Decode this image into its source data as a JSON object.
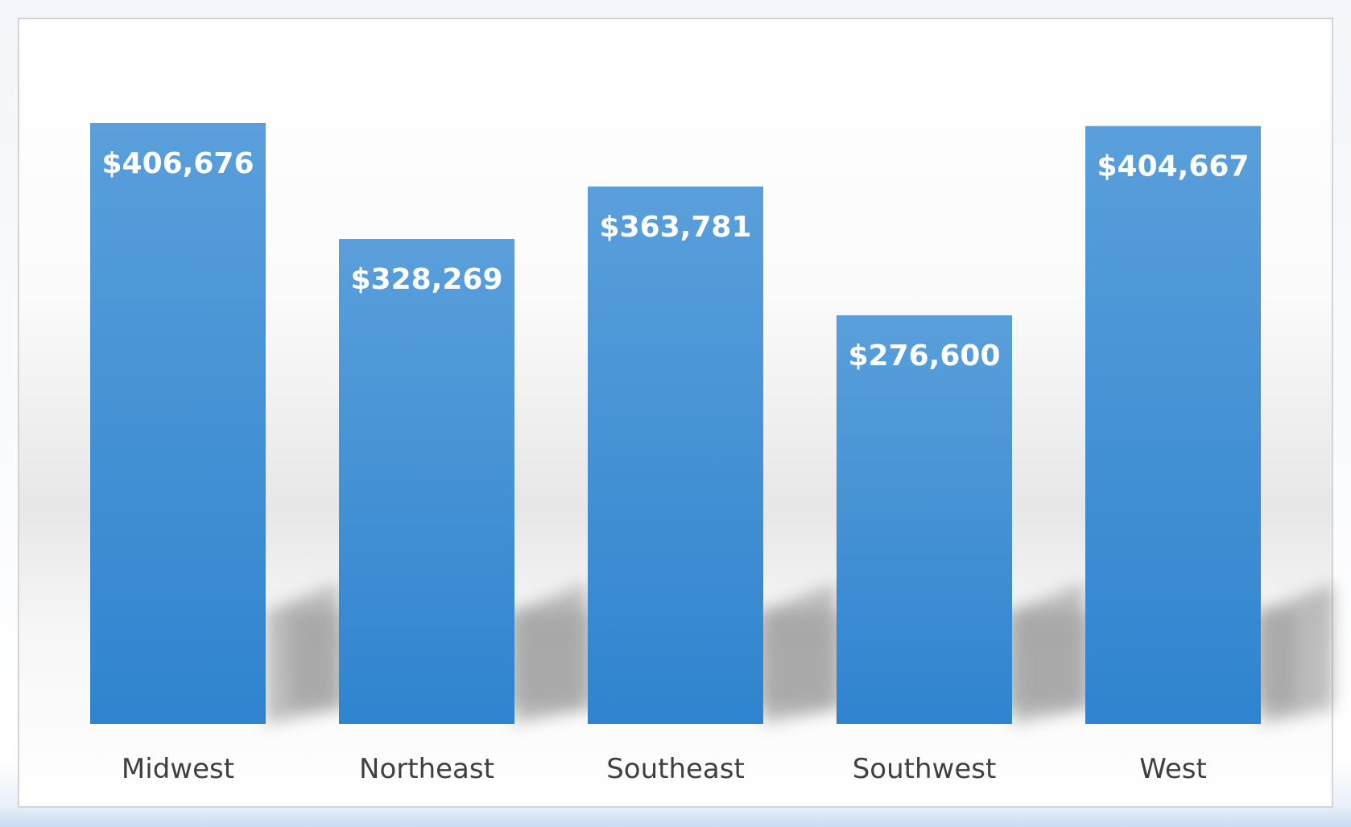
{
  "chart_data": {
    "type": "bar",
    "categories": [
      "Midwest",
      "Northeast",
      "Southeast",
      "Southwest",
      "West"
    ],
    "values": [
      406676,
      328269,
      363781,
      276600,
      404667
    ],
    "data_labels": [
      "$406,676",
      "$328,269",
      "$363,781",
      "$276,600",
      "$404,667"
    ],
    "title": "",
    "xlabel": "",
    "ylabel": "",
    "ylim": [
      0,
      406676
    ],
    "grid": false,
    "legend": "none",
    "bar_color": "#3f8fd6",
    "label_color": "#ffffff"
  }
}
